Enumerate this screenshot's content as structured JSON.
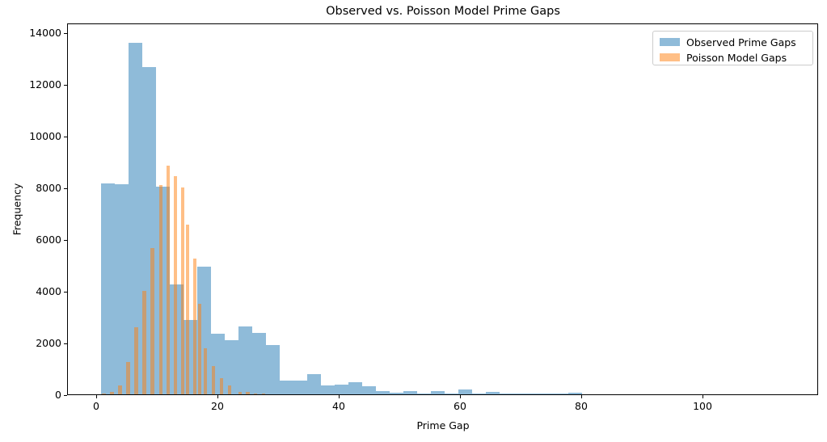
{
  "title": "Observed vs. Poisson Model Prime Gaps",
  "axis_labels": {
    "x": "Prime Gap",
    "y": "Frequency"
  },
  "legend": {
    "position": "upper right",
    "items": [
      {
        "label": "Observed Prime Gaps",
        "color": "#8fbbda",
        "rgba": "rgba(31,119,180,0.5)"
      },
      {
        "label": "Poisson Model Gaps",
        "color": "#ffbf86",
        "rgba": "rgba(255,127,14,0.5)"
      }
    ]
  },
  "colors": {
    "observed_fill": "rgba(31,119,180,0.5)",
    "poisson_fill": "rgba(255,127,14,0.5)",
    "overlap_result": "#c79d74",
    "spine": "#000000",
    "legend_border": "#cccccc",
    "background": "#ffffff"
  },
  "axes": {
    "x_ticks": [
      0,
      20,
      40,
      60,
      80,
      100
    ],
    "y_ticks": [
      0,
      2000,
      4000,
      6000,
      8000,
      10000,
      12000,
      14000
    ],
    "xlim": [
      -4.8,
      119.0
    ],
    "ylim": [
      0,
      14375
    ]
  },
  "chart_data": {
    "type": "bar",
    "subtype": "overlaid-histograms",
    "title": "Observed vs. Poisson Model Prime Gaps",
    "xlabel": "Prime Gap",
    "ylabel": "Frequency",
    "xlim": [
      -4.8,
      119.0
    ],
    "ylim": [
      0,
      14375
    ],
    "grid": false,
    "legend_position": "upper right",
    "series": [
      {
        "name": "Observed Prime Gaps",
        "style": "histogram",
        "color": "#8fbbda",
        "bin_start": 0.8,
        "bin_width": 2.2667,
        "counts": [
          8170,
          8130,
          13600,
          12670,
          8020,
          4250,
          2880,
          4930,
          2350,
          2100,
          2630,
          2380,
          1900,
          540,
          540,
          770,
          340,
          380,
          470,
          310,
          140,
          50,
          130,
          40,
          115,
          40,
          190,
          40,
          90,
          25,
          20,
          20,
          20,
          30,
          65
        ]
      },
      {
        "name": "Poisson Model Gaps",
        "style": "narrow-bars",
        "color": "#ffbf86",
        "bar_width": 0.56,
        "bars": [
          [
            1.27,
            20
          ],
          [
            2.6,
            85
          ],
          [
            3.93,
            350
          ],
          [
            5.27,
            1240
          ],
          [
            6.6,
            2600
          ],
          [
            7.93,
            4000
          ],
          [
            9.27,
            5650
          ],
          [
            10.67,
            8090
          ],
          [
            11.87,
            8840
          ],
          [
            13.07,
            8440
          ],
          [
            14.27,
            7990
          ],
          [
            15.07,
            6560
          ],
          [
            16.27,
            5260
          ],
          [
            17.07,
            3500
          ],
          [
            18.0,
            1790
          ],
          [
            19.33,
            1090
          ],
          [
            20.67,
            620
          ],
          [
            22.0,
            350
          ],
          [
            23.73,
            105
          ],
          [
            25.0,
            90
          ],
          [
            26.27,
            40
          ],
          [
            27.6,
            25
          ]
        ]
      }
    ]
  }
}
